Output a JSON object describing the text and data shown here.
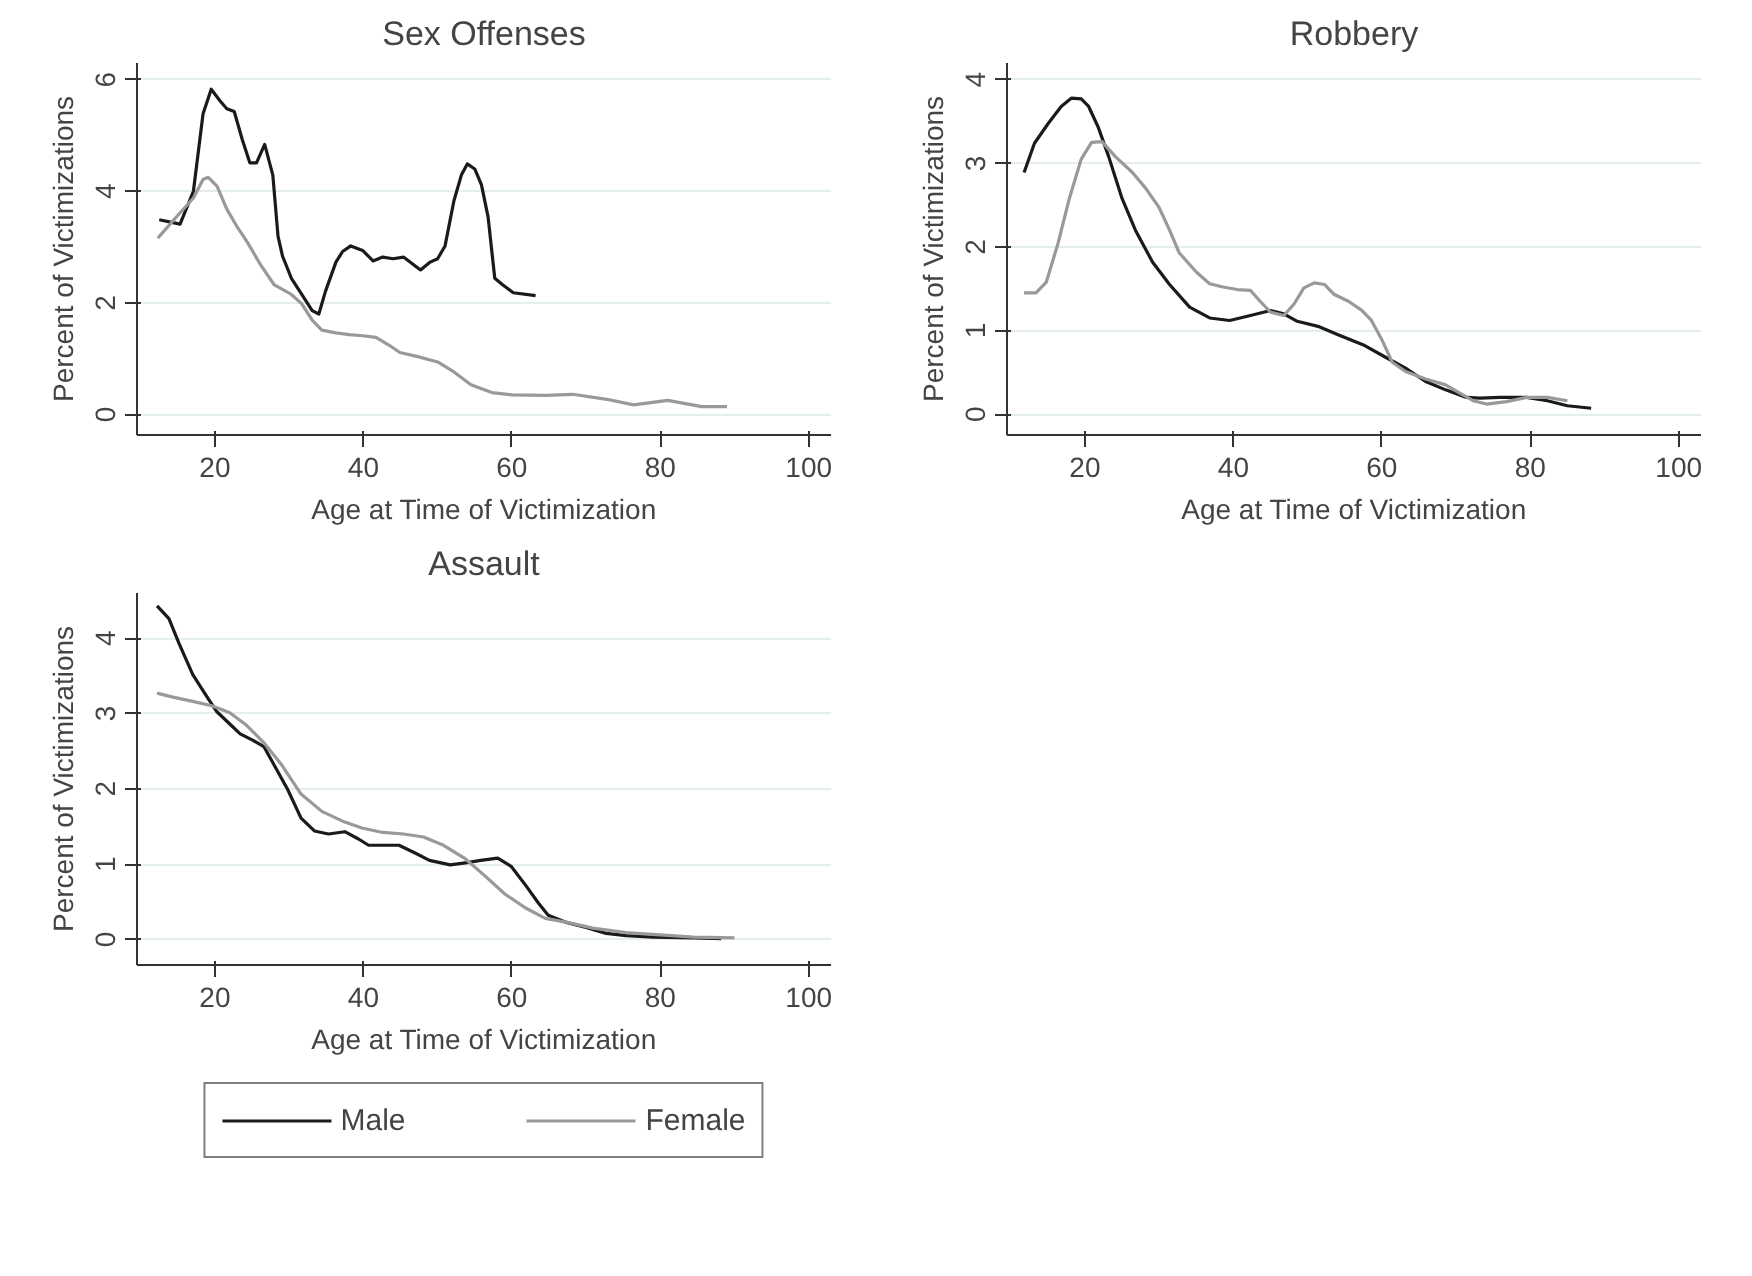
{
  "chart_data": [
    {
      "type": "line",
      "title": "Sex Offenses",
      "xlabel": "Age at Time of Victimization",
      "ylabel": "Percent of Victimizations",
      "xlim": [
        9.5,
        103
      ],
      "ylim": [
        -0.37,
        6.3
      ],
      "xticks": [
        20,
        40,
        60,
        80,
        100
      ],
      "yticks": [
        0,
        2,
        4,
        6
      ],
      "grid": "y",
      "legend": false,
      "series": [
        {
          "color": "#1a1a1a",
          "x": [
            12.5,
            15.3,
            17.1,
            18.4,
            19.5,
            20.7,
            21.6,
            22.6,
            23.7,
            24.7,
            25.6,
            26.7,
            27.8,
            28.5,
            29.1,
            30.3,
            31.7,
            33.1,
            34,
            34.9,
            36.3,
            37.2,
            38.3,
            39.9,
            41.3,
            42.6,
            44,
            45.4,
            46.5,
            47.7,
            49,
            50,
            51,
            52.2,
            53.2,
            54,
            55,
            55.9,
            56.8,
            57.7,
            58.8,
            60.2,
            63.2
          ],
          "values": [
            3.49,
            3.41,
            4.0,
            5.39,
            5.83,
            5.62,
            5.48,
            5.43,
            4.92,
            4.51,
            4.51,
            4.84,
            4.29,
            3.19,
            2.84,
            2.44,
            2.15,
            1.86,
            1.8,
            2.21,
            2.73,
            2.92,
            3.02,
            2.94,
            2.75,
            2.82,
            2.79,
            2.82,
            2.71,
            2.59,
            2.73,
            2.79,
            3.02,
            3.83,
            4.29,
            4.49,
            4.4,
            4.12,
            3.54,
            2.44,
            2.32,
            2.18,
            2.13
          ]
        },
        {
          "color": "#999999",
          "x": [
            12.3,
            14.8,
            17.1,
            18.4,
            19.1,
            20.3,
            21.6,
            23,
            24.4,
            26.2,
            28,
            30.3,
            31.7,
            33.1,
            34.4,
            36.3,
            38.1,
            39.9,
            41.7,
            43.6,
            44.9,
            47.2,
            50,
            52.2,
            54.5,
            57.3,
            60,
            64.6,
            68.2,
            72.8,
            76.4,
            81,
            85.6,
            89
          ],
          "values": [
            3.16,
            3.54,
            3.88,
            4.21,
            4.25,
            4.09,
            3.68,
            3.36,
            3.08,
            2.67,
            2.32,
            2.15,
            1.98,
            1.69,
            1.51,
            1.46,
            1.43,
            1.41,
            1.38,
            1.23,
            1.11,
            1.04,
            0.94,
            0.76,
            0.53,
            0.39,
            0.35,
            0.34,
            0.36,
            0.27,
            0.17,
            0.25,
            0.14,
            0.14
          ]
        }
      ]
    },
    {
      "type": "line",
      "title": "Robbery",
      "xlabel": "Age at Time of Victimization",
      "ylabel": "Percent of Victimizations",
      "xlim": [
        9.5,
        103
      ],
      "ylim": [
        -0.25,
        4.2
      ],
      "xticks": [
        20,
        40,
        60,
        80,
        100
      ],
      "yticks": [
        0,
        1,
        2,
        3,
        4
      ],
      "grid": "y",
      "legend": false,
      "series": [
        {
          "color": "#1a1a1a",
          "x": [
            11.8,
            13.2,
            15,
            16.8,
            18.2,
            19.5,
            20.5,
            21.8,
            23.2,
            25,
            26.8,
            29.1,
            31.4,
            34.1,
            36.8,
            39.5,
            42.3,
            45,
            46.8,
            48.6,
            51.4,
            54.1,
            57.7,
            60.5,
            63.2,
            65.9,
            68.6,
            71.4,
            73.2,
            75.9,
            79.5,
            82.3,
            85,
            88.2
          ],
          "values": [
            2.89,
            3.24,
            3.47,
            3.68,
            3.78,
            3.77,
            3.68,
            3.43,
            3.08,
            2.58,
            2.2,
            1.82,
            1.55,
            1.28,
            1.15,
            1.12,
            1.18,
            1.24,
            1.2,
            1.11,
            1.05,
            0.95,
            0.82,
            0.68,
            0.55,
            0.39,
            0.29,
            0.2,
            0.19,
            0.2,
            0.2,
            0.16,
            0.1,
            0.07
          ]
        },
        {
          "color": "#999999",
          "x": [
            11.8,
            13.4,
            14.8,
            16.4,
            17.9,
            19.5,
            20.9,
            22.3,
            24.1,
            26.4,
            28.2,
            30,
            31.4,
            32.7,
            35,
            36.8,
            38.6,
            40.5,
            42.3,
            43.6,
            45,
            46.8,
            48.2,
            49.5,
            50.9,
            52.3,
            53.6,
            55.5,
            57.3,
            58.6,
            60,
            61.4,
            63.2,
            65.9,
            68.6,
            70.5,
            72.3,
            74.1,
            76.8,
            79.5,
            82.3,
            85
          ],
          "values": [
            1.45,
            1.45,
            1.58,
            2.05,
            2.58,
            3.05,
            3.25,
            3.26,
            3.08,
            2.89,
            2.7,
            2.47,
            2.2,
            1.93,
            1.7,
            1.56,
            1.52,
            1.49,
            1.48,
            1.35,
            1.22,
            1.18,
            1.32,
            1.51,
            1.57,
            1.55,
            1.43,
            1.35,
            1.24,
            1.12,
            0.89,
            0.62,
            0.51,
            0.42,
            0.35,
            0.25,
            0.16,
            0.12,
            0.15,
            0.2,
            0.2,
            0.16
          ]
        }
      ]
    },
    {
      "type": "line",
      "title": "Assault",
      "xlabel": "Age at Time of Victimization",
      "ylabel": "Percent of Victimizations",
      "xlim": [
        9.5,
        103
      ],
      "ylim": [
        -0.34,
        4.6
      ],
      "xticks": [
        20,
        40,
        60,
        80,
        100
      ],
      "yticks": [
        0,
        1,
        2,
        3,
        4
      ],
      "grid": "y",
      "legend": "bottom",
      "series": [
        {
          "name": "Male",
          "color": "#1a1a1a",
          "x": [
            12.2,
            13.8,
            15.2,
            17,
            18.8,
            20.2,
            22,
            23.4,
            25.2,
            26.6,
            27.9,
            29.8,
            31.6,
            33.4,
            35.3,
            37.5,
            39.4,
            40.7,
            43,
            44.8,
            47.1,
            48.9,
            51.7,
            54,
            55.8,
            58.1,
            59.9,
            61.7,
            63.6,
            64.9,
            67.2,
            70,
            72.7,
            75.4,
            79.1,
            84.6,
            88.2
          ],
          "values": [
            4.43,
            4.26,
            3.92,
            3.52,
            3.24,
            3.03,
            2.86,
            2.73,
            2.64,
            2.56,
            2.33,
            1.99,
            1.61,
            1.44,
            1.4,
            1.43,
            1.33,
            1.25,
            1.25,
            1.25,
            1.14,
            1.05,
            0.99,
            1.02,
            1.05,
            1.08,
            0.97,
            0.74,
            0.48,
            0.32,
            0.23,
            0.16,
            0.08,
            0.05,
            0.03,
            0.02,
            0.01
          ]
        },
        {
          "name": "Female",
          "color": "#999999",
          "x": [
            12.2,
            14.2,
            17,
            19.7,
            22,
            24.3,
            26.6,
            28.9,
            31.6,
            34.4,
            37.2,
            39.8,
            42.6,
            45.4,
            48.1,
            50.8,
            53.6,
            56.3,
            59.1,
            61.8,
            64.5,
            67.3,
            70.9,
            75.4,
            80,
            84.5,
            90
          ],
          "values": [
            3.27,
            3.22,
            3.16,
            3.1,
            3.01,
            2.84,
            2.61,
            2.33,
            1.93,
            1.7,
            1.57,
            1.48,
            1.42,
            1.4,
            1.36,
            1.25,
            1.08,
            0.85,
            0.6,
            0.42,
            0.28,
            0.23,
            0.15,
            0.09,
            0.06,
            0.03,
            0.02
          ]
        }
      ]
    }
  ]
}
